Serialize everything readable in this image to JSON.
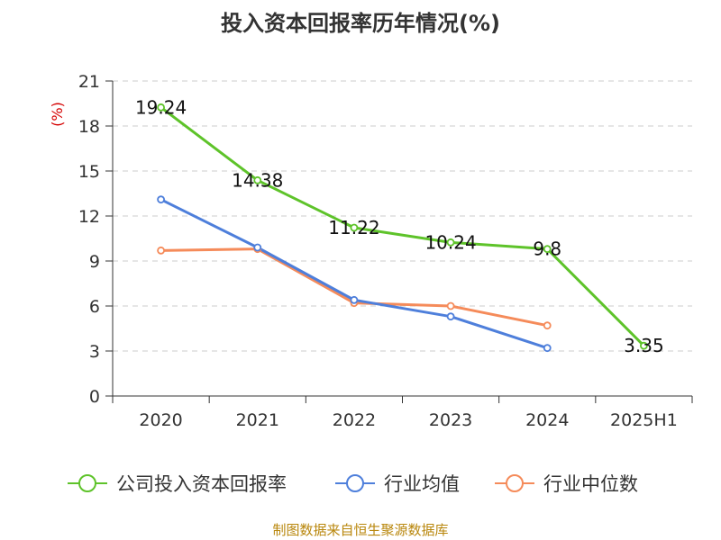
{
  "title": "投入资本回报率历年情况(%)",
  "footer": "制图数据来自恒生聚源数据库",
  "chart_data": {
    "type": "line",
    "title": "投入资本回报率历年情况(%)",
    "ylabel": "(%)",
    "xlabel": "",
    "ylim": [
      0,
      21
    ],
    "yticks": [
      0,
      3,
      6,
      9,
      12,
      15,
      18,
      21
    ],
    "grid": true,
    "legend": "bottom",
    "categories": [
      "2020",
      "2021",
      "2022",
      "2023",
      "2024",
      "2025H1"
    ],
    "series": [
      {
        "name": "公司投入资本回报率",
        "color": "#5ec32a",
        "values": [
          19.24,
          14.38,
          11.22,
          10.24,
          9.8,
          3.35
        ],
        "labels": [
          "19.24",
          "14.38",
          "11.22",
          "10.24",
          "9.8",
          "3.35"
        ]
      },
      {
        "name": "行业均值",
        "color": "#4e7fdb",
        "values": [
          13.1,
          9.9,
          6.4,
          5.3,
          3.2,
          null
        ]
      },
      {
        "name": "行业中位数",
        "color": "#f58b5a",
        "values": [
          9.7,
          9.8,
          6.2,
          6.0,
          4.7,
          null
        ]
      }
    ]
  }
}
